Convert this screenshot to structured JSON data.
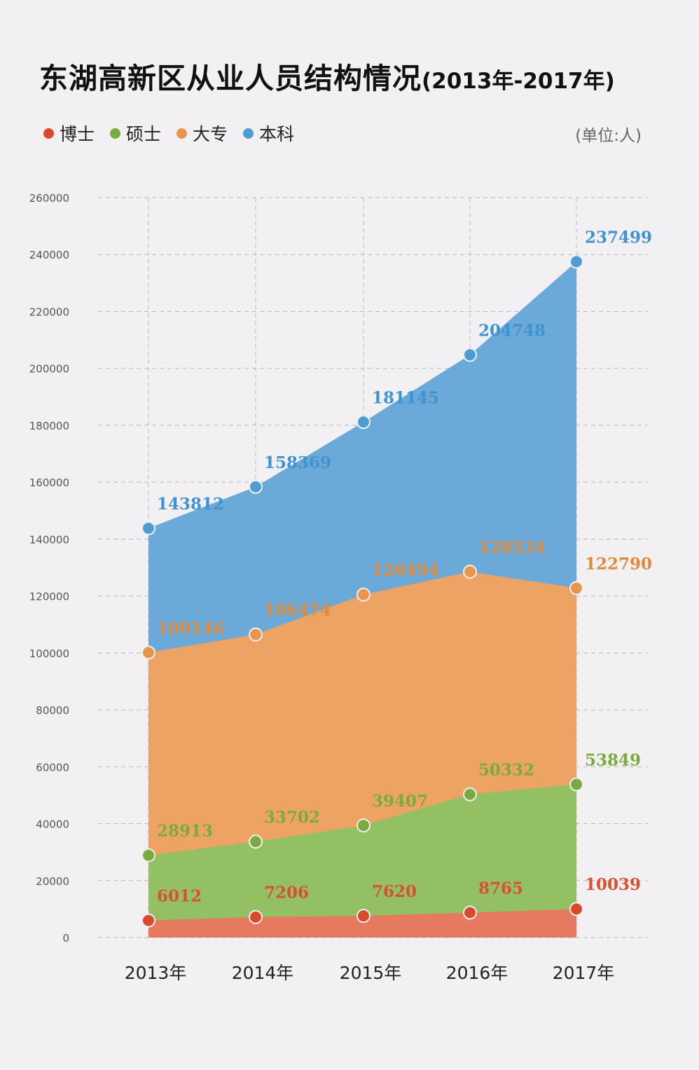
{
  "title": {
    "main": "东湖高新区从业人员结构情况",
    "sub": "(2013年-2017年)"
  },
  "unit_label": "(单位:人)",
  "colors": {
    "phd": "#d94a2b",
    "master": "#7aab3f",
    "college": "#e8964e",
    "bachelor": "#4d9dd4",
    "phd_fill": "#e57a5e",
    "master_fill": "#93c063",
    "college_fill": "#eda363",
    "bachelor_fill": "#6aa9d8"
  },
  "chart_data": {
    "type": "area",
    "title": "东湖高新区从业人员结构情况(2013年-2017年)",
    "categories": [
      "2013年",
      "2014年",
      "2015年",
      "2016年",
      "2017年"
    ],
    "ylim": [
      0,
      260000
    ],
    "yticks": [
      "0",
      "20000",
      "40000",
      "60000",
      "80000",
      "100000",
      "120000",
      "140000",
      "160000",
      "180000",
      "200000",
      "220000",
      "240000",
      "260000"
    ],
    "ytick_values": [
      0,
      20000,
      40000,
      60000,
      80000,
      100000,
      120000,
      140000,
      160000,
      180000,
      200000,
      220000,
      240000,
      260000
    ],
    "grid": true,
    "legend_position": "top-left",
    "series": [
      {
        "key": "phd",
        "name": "博士",
        "values": [
          6012,
          7206,
          7620,
          8765,
          10039
        ],
        "labels": [
          "6012",
          "7206",
          "7620",
          "8765",
          "10039"
        ]
      },
      {
        "key": "master",
        "name": "硕士",
        "values": [
          28913,
          33702,
          39407,
          50332,
          53849
        ],
        "labels": [
          "28913",
          "33702",
          "39407",
          "50332",
          "53849"
        ]
      },
      {
        "key": "college",
        "name": "大专",
        "values": [
          100146,
          106474,
          120494,
          128534,
          122790
        ],
        "labels": [
          "100146",
          "106474",
          "120494",
          "128534",
          "122790"
        ]
      },
      {
        "key": "bachelor",
        "name": "本科",
        "values": [
          143812,
          158369,
          181145,
          204748,
          237499
        ],
        "labels": [
          "143812",
          "158369",
          "181145",
          "204748",
          "237499"
        ]
      }
    ]
  }
}
